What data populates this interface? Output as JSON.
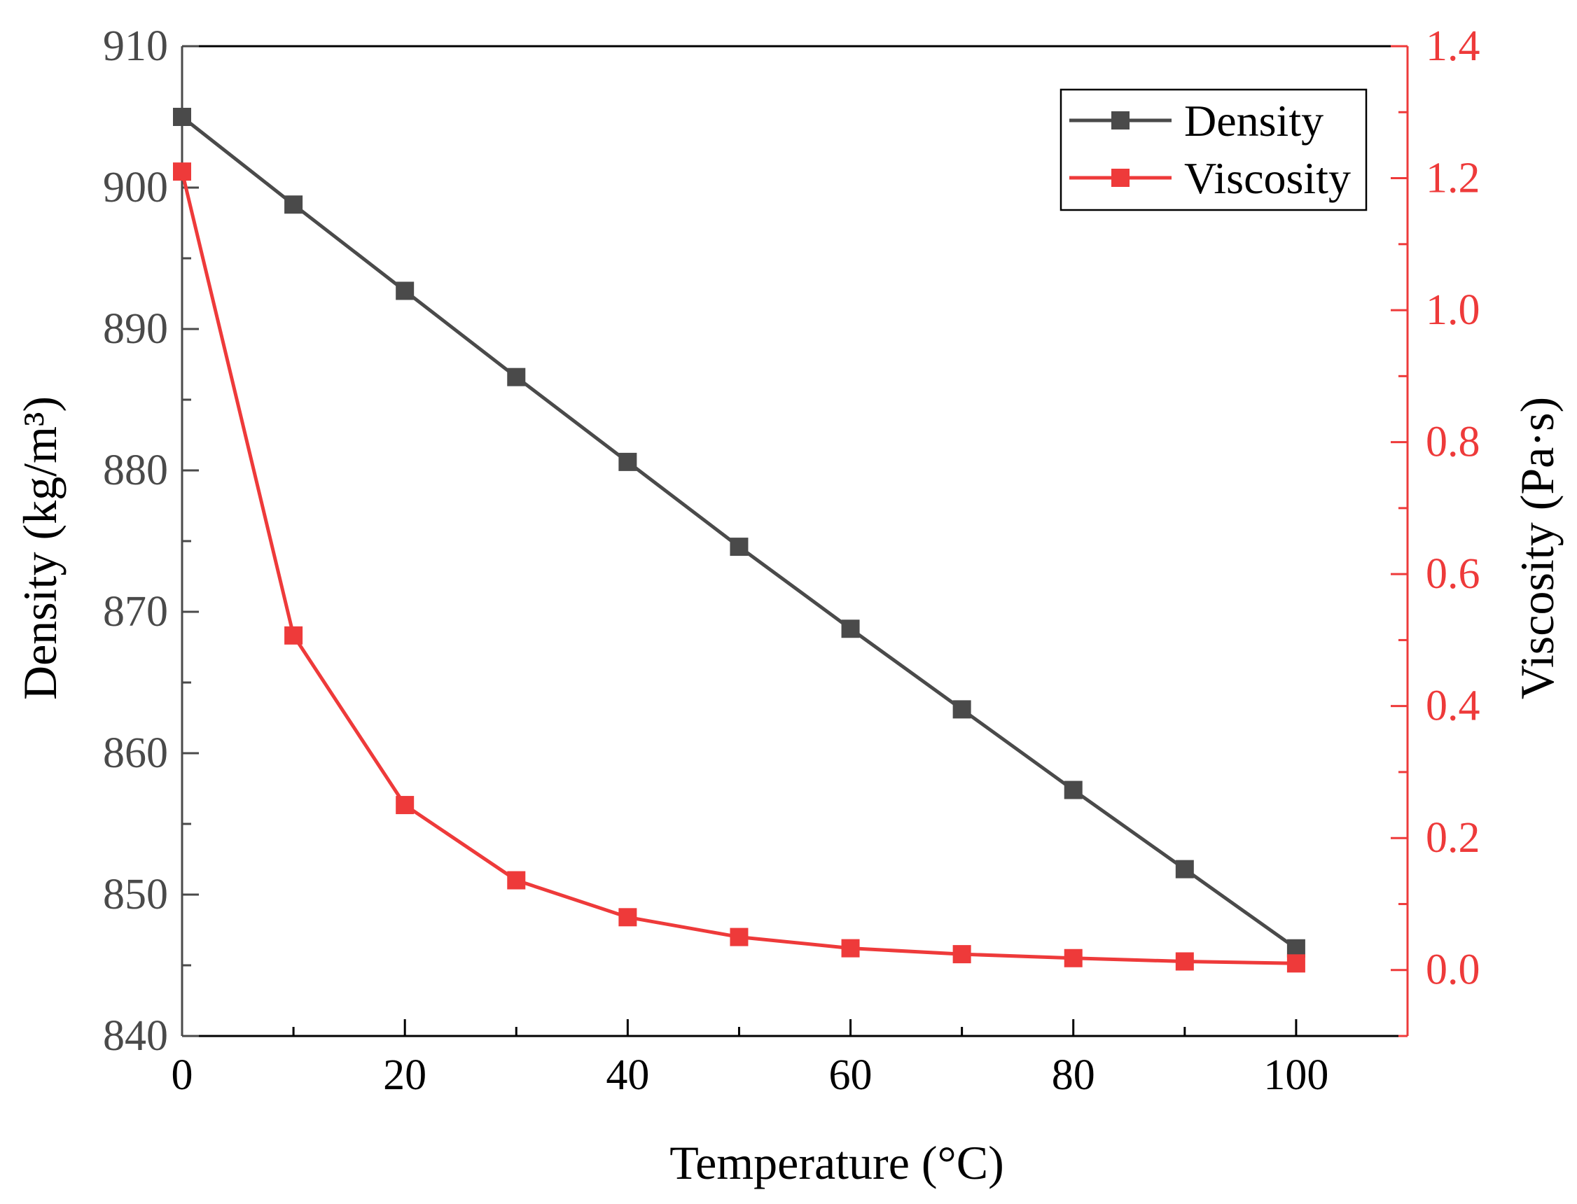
{
  "chart_data": {
    "type": "line",
    "title": "",
    "xlabel": "Temperature (°C)",
    "ylabel_left": "Density (kg/m³)",
    "ylabel_right": "Viscosity (Pa·s)",
    "xlim": [
      0,
      110
    ],
    "ylim_left": [
      840,
      910
    ],
    "ylim_right": [
      -0.1,
      1.4
    ],
    "x_ticks": [
      0,
      20,
      40,
      60,
      80,
      100
    ],
    "x_tick_labels": [
      "0",
      "20",
      "40",
      "60",
      "80",
      "100"
    ],
    "y_left_ticks": [
      840,
      850,
      860,
      870,
      880,
      890,
      900,
      910
    ],
    "y_left_tick_labels": [
      "840",
      "850",
      "860",
      "870",
      "880",
      "890",
      "900",
      "910"
    ],
    "y_right_ticks": [
      0.0,
      0.2,
      0.4,
      0.6,
      0.8,
      1.0,
      1.2,
      1.4
    ],
    "y_right_tick_labels": [
      "0.0",
      "0.2",
      "0.4",
      "0.6",
      "0.8",
      "1.0",
      "1.2",
      "1.4"
    ],
    "grid": false,
    "legend_position": "top-right",
    "x": [
      0,
      10,
      20,
      30,
      40,
      50,
      60,
      70,
      80,
      90,
      100
    ],
    "series": [
      {
        "name": "Density",
        "axis": "left",
        "color": "#4a4a4a",
        "marker": "square",
        "values": [
          905.0,
          898.8,
          892.7,
          886.6,
          880.6,
          874.6,
          868.8,
          863.1,
          857.4,
          851.8,
          846.2
        ]
      },
      {
        "name": "Viscosity",
        "axis": "right",
        "color": "#ee3a3a",
        "marker": "square",
        "values": [
          1.21,
          0.507,
          0.25,
          0.136,
          0.08,
          0.05,
          0.033,
          0.024,
          0.018,
          0.013,
          0.01
        ]
      }
    ]
  }
}
